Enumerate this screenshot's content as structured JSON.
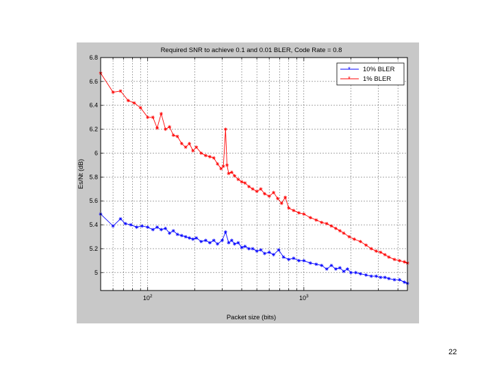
{
  "slide": {
    "page_number": "22"
  },
  "chart_data": {
    "type": "line",
    "title": "Required SNR to achieve 0.1 and 0.01 BLER, Code Rate = 0.8",
    "xlabel": "Packet size (bits)",
    "ylabel": "Es/Nt (dB)",
    "xscale": "log",
    "xlim": [
      50,
      4600
    ],
    "ylim": [
      4.85,
      6.8
    ],
    "x_tick_labels": [
      {
        "base": "10",
        "exp": "2",
        "value": 100
      },
      {
        "base": "10",
        "exp": "3",
        "value": 1000
      }
    ],
    "y_ticks": [
      {
        "value": 6.8,
        "label": "6.8"
      },
      {
        "value": 6.6,
        "label": "6.6"
      },
      {
        "value": 6.4,
        "label": "6.4"
      },
      {
        "value": 6.2,
        "label": "6.2"
      },
      {
        "value": 6.0,
        "label": "6"
      },
      {
        "value": 5.8,
        "label": "5.8"
      },
      {
        "value": 5.6,
        "label": "5.6"
      },
      {
        "value": 5.4,
        "label": "5.4"
      },
      {
        "value": 5.2,
        "label": "5.2"
      },
      {
        "value": 5.0,
        "label": "5"
      }
    ],
    "grid": true,
    "legend_position": "top-right",
    "series": [
      {
        "name": "10% BLER",
        "color": "#0000ff",
        "points": [
          [
            50,
            5.49
          ],
          [
            60,
            5.39
          ],
          [
            67,
            5.45
          ],
          [
            72,
            5.41
          ],
          [
            78,
            5.4
          ],
          [
            85,
            5.38
          ],
          [
            92,
            5.39
          ],
          [
            100,
            5.38
          ],
          [
            108,
            5.36
          ],
          [
            115,
            5.38
          ],
          [
            122,
            5.36
          ],
          [
            130,
            5.37
          ],
          [
            138,
            5.33
          ],
          [
            146,
            5.35
          ],
          [
            155,
            5.32
          ],
          [
            165,
            5.31
          ],
          [
            175,
            5.3
          ],
          [
            185,
            5.29
          ],
          [
            195,
            5.28
          ],
          [
            205,
            5.29
          ],
          [
            220,
            5.26
          ],
          [
            235,
            5.27
          ],
          [
            250,
            5.25
          ],
          [
            265,
            5.27
          ],
          [
            280,
            5.24
          ],
          [
            300,
            5.27
          ],
          [
            315,
            5.34
          ],
          [
            330,
            5.25
          ],
          [
            345,
            5.27
          ],
          [
            360,
            5.24
          ],
          [
            380,
            5.25
          ],
          [
            400,
            5.21
          ],
          [
            420,
            5.22
          ],
          [
            445,
            5.2
          ],
          [
            470,
            5.2
          ],
          [
            500,
            5.18
          ],
          [
            530,
            5.19
          ],
          [
            560,
            5.16
          ],
          [
            600,
            5.17
          ],
          [
            640,
            5.15
          ],
          [
            690,
            5.19
          ],
          [
            740,
            5.13
          ],
          [
            800,
            5.11
          ],
          [
            860,
            5.12
          ],
          [
            930,
            5.1
          ],
          [
            1000,
            5.1
          ],
          [
            1100,
            5.08
          ],
          [
            1200,
            5.07
          ],
          [
            1300,
            5.06
          ],
          [
            1400,
            5.03
          ],
          [
            1500,
            5.06
          ],
          [
            1600,
            5.03
          ],
          [
            1700,
            5.04
          ],
          [
            1800,
            5.01
          ],
          [
            1900,
            5.03
          ],
          [
            2000,
            5.0
          ],
          [
            2150,
            5.0
          ],
          [
            2300,
            4.99
          ],
          [
            2500,
            4.98
          ],
          [
            2700,
            4.97
          ],
          [
            2900,
            4.97
          ],
          [
            3100,
            4.96
          ],
          [
            3300,
            4.96
          ],
          [
            3500,
            4.95
          ],
          [
            3800,
            4.94
          ],
          [
            4100,
            4.94
          ],
          [
            4400,
            4.92
          ],
          [
            4600,
            4.91
          ]
        ]
      },
      {
        "name": "1% BLER",
        "color": "#ff0000",
        "points": [
          [
            50,
            6.67
          ],
          [
            60,
            6.51
          ],
          [
            67,
            6.52
          ],
          [
            75,
            6.44
          ],
          [
            82,
            6.42
          ],
          [
            90,
            6.38
          ],
          [
            100,
            6.3
          ],
          [
            108,
            6.3
          ],
          [
            115,
            6.21
          ],
          [
            122,
            6.33
          ],
          [
            130,
            6.2
          ],
          [
            138,
            6.22
          ],
          [
            146,
            6.15
          ],
          [
            155,
            6.14
          ],
          [
            165,
            6.08
          ],
          [
            175,
            6.05
          ],
          [
            185,
            6.08
          ],
          [
            195,
            6.02
          ],
          [
            205,
            6.05
          ],
          [
            220,
            6.0
          ],
          [
            235,
            5.98
          ],
          [
            250,
            5.97
          ],
          [
            265,
            5.96
          ],
          [
            280,
            5.91
          ],
          [
            295,
            5.87
          ],
          [
            305,
            5.89
          ],
          [
            315,
            6.2
          ],
          [
            322,
            5.9
          ],
          [
            330,
            5.83
          ],
          [
            345,
            5.84
          ],
          [
            360,
            5.81
          ],
          [
            380,
            5.78
          ],
          [
            400,
            5.76
          ],
          [
            420,
            5.75
          ],
          [
            445,
            5.72
          ],
          [
            470,
            5.7
          ],
          [
            500,
            5.68
          ],
          [
            530,
            5.7
          ],
          [
            560,
            5.66
          ],
          [
            600,
            5.64
          ],
          [
            640,
            5.67
          ],
          [
            680,
            5.62
          ],
          [
            720,
            5.58
          ],
          [
            760,
            5.63
          ],
          [
            800,
            5.54
          ],
          [
            860,
            5.52
          ],
          [
            930,
            5.5
          ],
          [
            1000,
            5.49
          ],
          [
            1100,
            5.46
          ],
          [
            1200,
            5.44
          ],
          [
            1300,
            5.42
          ],
          [
            1400,
            5.41
          ],
          [
            1500,
            5.39
          ],
          [
            1600,
            5.37
          ],
          [
            1700,
            5.35
          ],
          [
            1800,
            5.33
          ],
          [
            1950,
            5.3
          ],
          [
            2100,
            5.28
          ],
          [
            2300,
            5.26
          ],
          [
            2500,
            5.23
          ],
          [
            2700,
            5.2
          ],
          [
            2900,
            5.18
          ],
          [
            3100,
            5.17
          ],
          [
            3300,
            5.15
          ],
          [
            3500,
            5.13
          ],
          [
            3800,
            5.11
          ],
          [
            4100,
            5.1
          ],
          [
            4400,
            5.09
          ],
          [
            4600,
            5.08
          ]
        ]
      }
    ]
  }
}
